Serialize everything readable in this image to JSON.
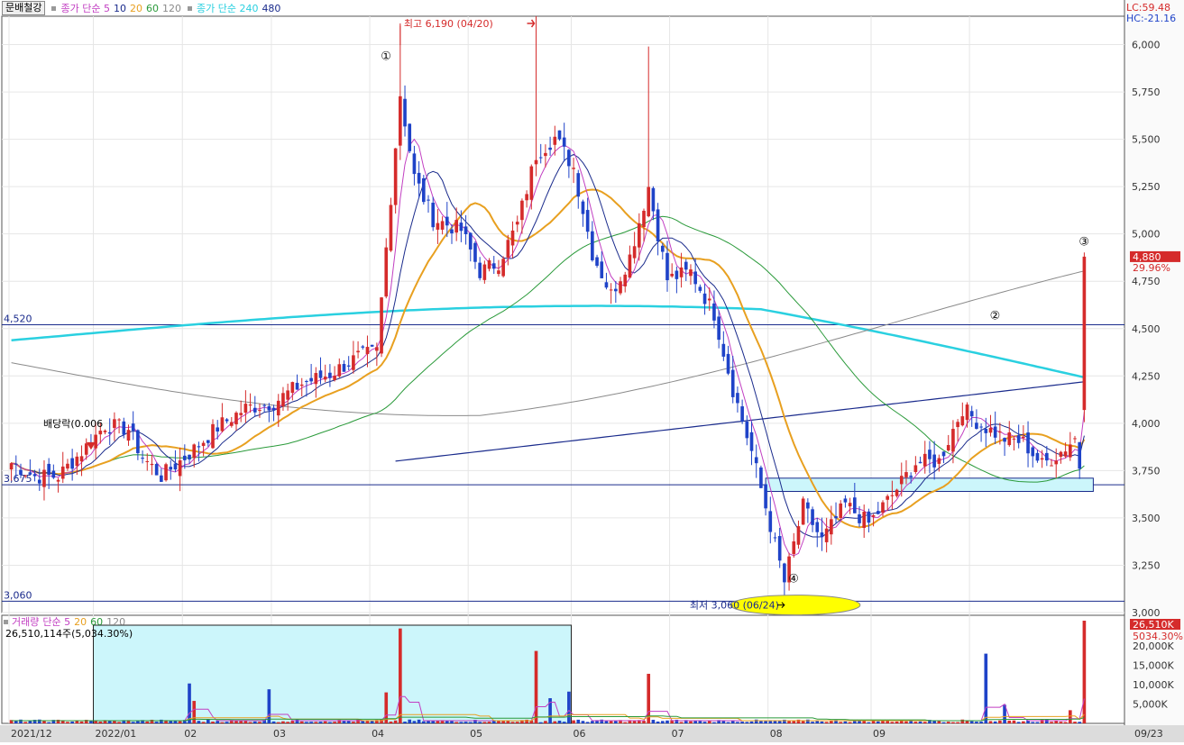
{
  "window": {
    "stock_name": "문배철강",
    "legend_ma_short": "종가 단순 5",
    "legend_ma_periods": [
      "10",
      "20",
      "60",
      "120"
    ],
    "legend_ma_long": "종가 단순 240",
    "legend_ma_long2": "480",
    "lc_label": "LC:59.48",
    "hc_label": "HC:-21.16"
  },
  "volume_panel": {
    "legend_title": "거래량",
    "legend_ma": "단순 5",
    "legend_periods": [
      "20",
      "60",
      "120"
    ],
    "info": "26,510,114주(5,034.30%)",
    "last_value_badge": "26,510K",
    "last_pct": "5034.30%",
    "ticks": [
      "20,000K",
      "15,000K",
      "10,000K",
      "5,000K"
    ]
  },
  "price_axis": {
    "ticks": [
      "6,000",
      "5,750",
      "5,500",
      "5,250",
      "5,000",
      "4,750",
      "4,500",
      "4,250",
      "4,000",
      "3,750",
      "3,500",
      "3,250",
      "3,000"
    ],
    "last_price_badge": "4,880",
    "last_change_pct": "29.96%"
  },
  "annotations": {
    "high_label": "최고 6,190 (04/20)",
    "low_label": "최저 3,060 (06/24)",
    "dividend_label": "배당락(0.006",
    "level_4520": "4,520",
    "level_3675": "3,675",
    "level_3060": "3,060",
    "marker_1": "①",
    "marker_2": "②",
    "marker_3": "③",
    "marker_4": "④"
  },
  "x_axis": {
    "labels": [
      "2021/12",
      "2022/01",
      "02",
      "03",
      "04",
      "05",
      "06",
      "07",
      "08",
      "09"
    ],
    "last_date_badge": "09/23"
  },
  "colors": {
    "up": "#d52b2b",
    "down": "#1f43c8",
    "ma5": "#c23fc2",
    "ma10": "#1a2b8c",
    "ma20": "#e8a020",
    "ma60": "#2a9a3a",
    "ma120": "#8a8a8a",
    "ma240": "#2ad0e0",
    "ma480": "#1a2b8c"
  },
  "chart_data": [
    {
      "type": "candlestick",
      "title": "문배철강",
      "ylim": [
        3000,
        6150
      ],
      "x_range": [
        "2021/12",
        "2022/09/23"
      ],
      "x_ticks": [
        "2021/12",
        "2022/01",
        "02",
        "03",
        "04",
        "05",
        "06",
        "07",
        "08",
        "09"
      ],
      "horizontal_levels": [
        4520,
        3675,
        3060
      ],
      "high": {
        "value": 6190,
        "date": "04/20"
      },
      "low": {
        "value": 3060,
        "date": "06/24"
      },
      "last": {
        "close": 4880,
        "change_pct": 29.96
      },
      "series": [
        {
          "name": "종가 단순 5"
        },
        {
          "name": "10"
        },
        {
          "name": "20"
        },
        {
          "name": "60"
        },
        {
          "name": "120"
        },
        {
          "name": "종가 단순 240"
        },
        {
          "name": "480"
        }
      ],
      "anchors": [
        {
          "i": 0,
          "c": 3790
        },
        {
          "i": 5,
          "c": 3720
        },
        {
          "i": 10,
          "c": 3720
        },
        {
          "i": 15,
          "c": 3850
        },
        {
          "i": 20,
          "c": 3990
        },
        {
          "i": 25,
          "c": 3970
        },
        {
          "i": 28,
          "c": 3820
        },
        {
          "i": 32,
          "c": 3720
        },
        {
          "i": 38,
          "c": 3840
        },
        {
          "i": 44,
          "c": 3980
        },
        {
          "i": 50,
          "c": 4080
        },
        {
          "i": 56,
          "c": 4110
        },
        {
          "i": 62,
          "c": 4210
        },
        {
          "i": 68,
          "c": 4260
        },
        {
          "i": 74,
          "c": 4350
        },
        {
          "i": 78,
          "c": 4380
        },
        {
          "i": 83,
          "c": 5740
        },
        {
          "i": 86,
          "c": 5300
        },
        {
          "i": 90,
          "c": 5080
        },
        {
          "i": 96,
          "c": 5020
        },
        {
          "i": 100,
          "c": 4800
        },
        {
          "i": 104,
          "c": 4850
        },
        {
          "i": 108,
          "c": 5050
        },
        {
          "i": 112,
          "c": 5420
        },
        {
          "i": 116,
          "c": 5510
        },
        {
          "i": 120,
          "c": 5350
        },
        {
          "i": 124,
          "c": 4900
        },
        {
          "i": 128,
          "c": 4680
        },
        {
          "i": 132,
          "c": 4880
        },
        {
          "i": 136,
          "c": 5250
        },
        {
          "i": 140,
          "c": 4760
        },
        {
          "i": 145,
          "c": 4800
        },
        {
          "i": 150,
          "c": 4580
        },
        {
          "i": 154,
          "c": 4180
        },
        {
          "i": 158,
          "c": 3850
        },
        {
          "i": 162,
          "c": 3460
        },
        {
          "i": 165,
          "c": 3160
        },
        {
          "i": 169,
          "c": 3560
        },
        {
          "i": 173,
          "c": 3380
        },
        {
          "i": 178,
          "c": 3570
        },
        {
          "i": 183,
          "c": 3470
        },
        {
          "i": 188,
          "c": 3620
        },
        {
          "i": 193,
          "c": 3790
        },
        {
          "i": 198,
          "c": 3800
        },
        {
          "i": 203,
          "c": 4080
        },
        {
          "i": 207,
          "c": 3990
        },
        {
          "i": 212,
          "c": 3920
        },
        {
          "i": 216,
          "c": 3900
        },
        {
          "i": 220,
          "c": 3780
        },
        {
          "i": 224,
          "c": 3850
        },
        {
          "i": 227,
          "c": 3920
        },
        {
          "i": 229,
          "c": 4880
        }
      ],
      "candle_count": 230
    },
    {
      "type": "bar",
      "title": "거래량",
      "ylim": [
        0,
        26510
      ],
      "unit": "K",
      "last_value": 26510114,
      "spikes": [
        {
          "i": 38,
          "v": 10300
        },
        {
          "i": 39,
          "v": 5800
        },
        {
          "i": 55,
          "v": 8800
        },
        {
          "i": 83,
          "v": 24500
        },
        {
          "i": 80,
          "v": 8000
        },
        {
          "i": 112,
          "v": 18700
        },
        {
          "i": 115,
          "v": 6500
        },
        {
          "i": 119,
          "v": 8200
        },
        {
          "i": 136,
          "v": 12800
        },
        {
          "i": 208,
          "v": 18000
        },
        {
          "i": 212,
          "v": 4800
        },
        {
          "i": 226,
          "v": 3400
        },
        {
          "i": 229,
          "v": 26510
        }
      ]
    }
  ]
}
